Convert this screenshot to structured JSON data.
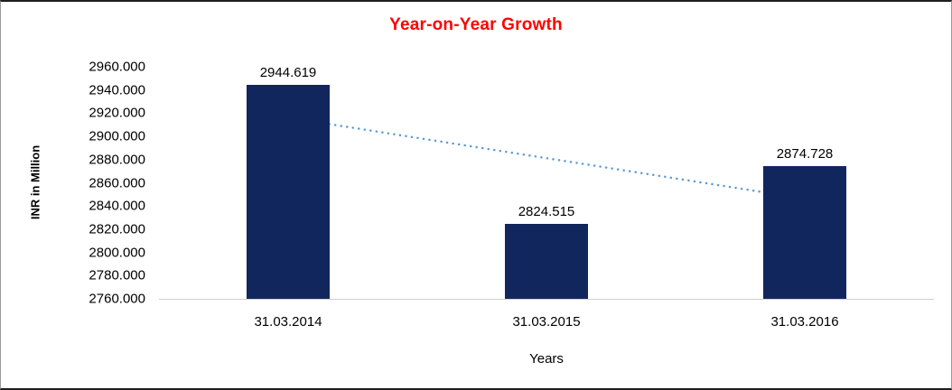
{
  "chart_data": {
    "type": "bar",
    "title": "Year-on-Year Growth",
    "title_color": "#FF0000",
    "xlabel": "Years",
    "ylabel": "INR in Million",
    "categories": [
      "31.03.2014",
      "31.03.2015",
      "31.03.2016"
    ],
    "values": [
      2944.619,
      2824.515,
      2874.728
    ],
    "data_labels": [
      "2944.619",
      "2824.515",
      "2874.728"
    ],
    "yticks": [
      "2960.000",
      "2940.000",
      "2920.000",
      "2900.000",
      "2880.000",
      "2860.000",
      "2840.000",
      "2820.000",
      "2800.000",
      "2780.000",
      "2760.000"
    ],
    "ylim": [
      2760,
      2960
    ],
    "grid": false,
    "legend": false,
    "bar_color": "#12265E",
    "trendline": {
      "style": "dotted",
      "color": "#5B9BD5",
      "start_value": 2916.2,
      "end_value": 2846.3
    }
  }
}
